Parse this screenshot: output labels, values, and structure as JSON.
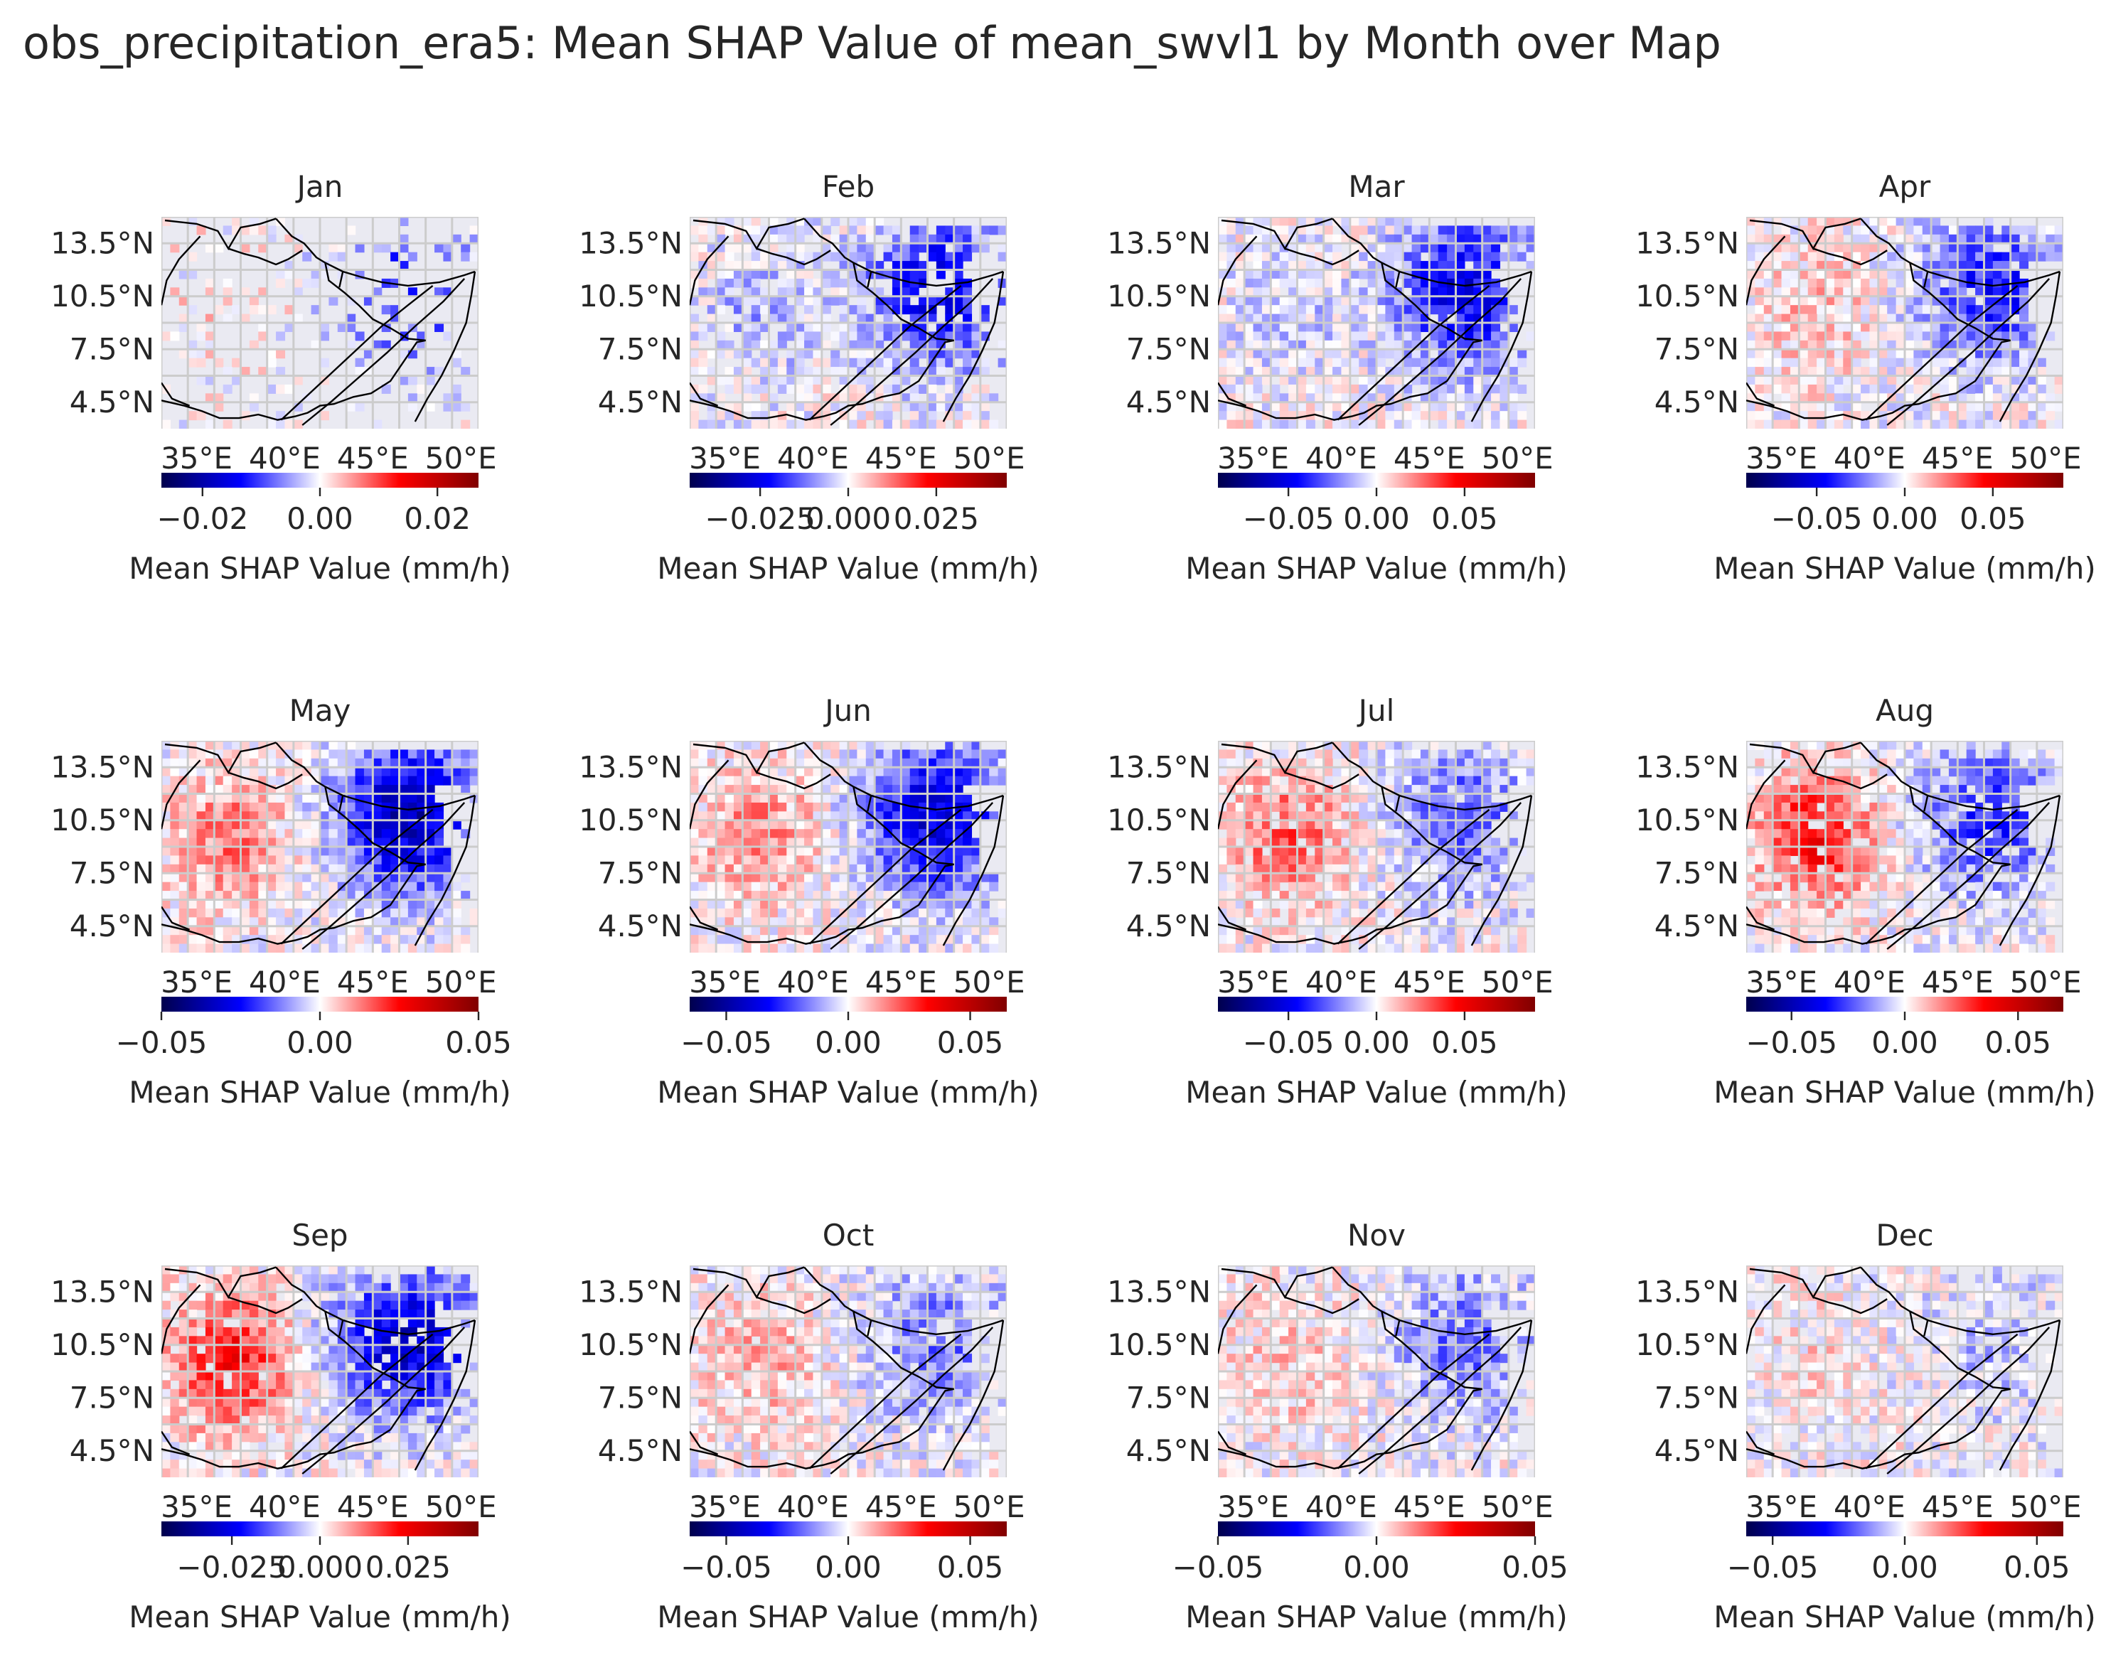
{
  "chart_data": {
    "type": "heatmap",
    "title": "obs_precipitation_era5: Mean SHAP Value of mean_swvl1 by Month over Map",
    "map_lon_ticks": [
      "35°E",
      "40°E",
      "45°E",
      "50°E"
    ],
    "map_lat_ticks": [
      "13.5°N",
      "10.5°N",
      "7.5°N",
      "4.5°N"
    ],
    "map_extent": {
      "lon": [
        33,
        51
      ],
      "lat": [
        3,
        15
      ]
    },
    "colormap": "seismic",
    "colorbar_label": "Mean SHAP Value (mm/h)",
    "colors": {
      "negative": "#00004c",
      "zero": "#ffffff",
      "positive": "#800000",
      "background": "#eaeaf2",
      "grid": "#cccccc"
    },
    "panels": [
      {
        "month": "Jan",
        "vmin": -0.027,
        "vmax": 0.027,
        "ticks": [
          {
            "v": -0.02,
            "label": "−0.02"
          },
          {
            "v": 0,
            "label": "0.00"
          },
          {
            "v": 0.02,
            "label": "0.02"
          }
        ],
        "west_value": 0.002,
        "east_value": -0.012,
        "density": 0.25
      },
      {
        "month": "Feb",
        "vmin": -0.045,
        "vmax": 0.045,
        "ticks": [
          {
            "v": -0.025,
            "label": "−0.025"
          },
          {
            "v": 0,
            "label": "0.000"
          },
          {
            "v": 0.025,
            "label": "0.025"
          }
        ],
        "west_value": -0.008,
        "east_value": -0.025,
        "density": 0.8
      },
      {
        "month": "Mar",
        "vmin": -0.09,
        "vmax": 0.09,
        "ticks": [
          {
            "v": -0.05,
            "label": "−0.05"
          },
          {
            "v": 0,
            "label": "0.00"
          },
          {
            "v": 0.05,
            "label": "0.05"
          }
        ],
        "west_value": -0.01,
        "east_value": -0.05,
        "density": 0.95
      },
      {
        "month": "Apr",
        "vmin": -0.09,
        "vmax": 0.09,
        "ticks": [
          {
            "v": -0.05,
            "label": "−0.05"
          },
          {
            "v": 0,
            "label": "0.00"
          },
          {
            "v": 0.05,
            "label": "0.05"
          }
        ],
        "west_value": 0.012,
        "east_value": -0.04,
        "density": 0.95
      },
      {
        "month": "May",
        "vmin": -0.05,
        "vmax": 0.05,
        "ticks": [
          {
            "v": -0.05,
            "label": "−0.05"
          },
          {
            "v": 0,
            "label": "0.00"
          },
          {
            "v": 0.05,
            "label": "0.05"
          }
        ],
        "west_value": 0.014,
        "east_value": -0.035,
        "density": 1.0
      },
      {
        "month": "Jun",
        "vmin": -0.065,
        "vmax": 0.065,
        "ticks": [
          {
            "v": -0.05,
            "label": "−0.05"
          },
          {
            "v": 0,
            "label": "0.00"
          },
          {
            "v": 0.05,
            "label": "0.05"
          }
        ],
        "west_value": 0.016,
        "east_value": -0.04,
        "density": 1.0
      },
      {
        "month": "Jul",
        "vmin": -0.09,
        "vmax": 0.09,
        "ticks": [
          {
            "v": -0.05,
            "label": "−0.05"
          },
          {
            "v": 0,
            "label": "0.00"
          },
          {
            "v": 0.05,
            "label": "0.05"
          }
        ],
        "west_value": 0.03,
        "east_value": -0.03,
        "density": 0.9
      },
      {
        "month": "Aug",
        "vmin": -0.07,
        "vmax": 0.07,
        "ticks": [
          {
            "v": -0.05,
            "label": "−0.05"
          },
          {
            "v": 0,
            "label": "0.00"
          },
          {
            "v": 0.05,
            "label": "0.05"
          }
        ],
        "west_value": 0.035,
        "east_value": -0.03,
        "density": 0.85
      },
      {
        "month": "Sep",
        "vmin": -0.045,
        "vmax": 0.045,
        "ticks": [
          {
            "v": -0.025,
            "label": "−0.025"
          },
          {
            "v": 0,
            "label": "0.000"
          },
          {
            "v": 0.025,
            "label": "0.025"
          }
        ],
        "west_value": 0.022,
        "east_value": -0.03,
        "density": 0.9
      },
      {
        "month": "Oct",
        "vmin": -0.065,
        "vmax": 0.065,
        "ticks": [
          {
            "v": -0.05,
            "label": "−0.05"
          },
          {
            "v": 0,
            "label": "0.00"
          },
          {
            "v": 0.05,
            "label": "0.05"
          }
        ],
        "west_value": 0.012,
        "east_value": -0.018,
        "density": 0.95
      },
      {
        "month": "Nov",
        "vmin": -0.05,
        "vmax": 0.05,
        "ticks": [
          {
            "v": -0.05,
            "label": "−0.05"
          },
          {
            "v": 0,
            "label": "0.00"
          },
          {
            "v": 0.05,
            "label": "0.05"
          }
        ],
        "west_value": 0.006,
        "east_value": -0.015,
        "density": 0.9
      },
      {
        "month": "Dec",
        "vmin": -0.06,
        "vmax": 0.06,
        "ticks": [
          {
            "v": -0.05,
            "label": "−0.05"
          },
          {
            "v": 0,
            "label": "0.00"
          },
          {
            "v": 0.05,
            "label": "0.05"
          }
        ],
        "west_value": 0.004,
        "east_value": -0.008,
        "density": 0.8
      }
    ]
  }
}
